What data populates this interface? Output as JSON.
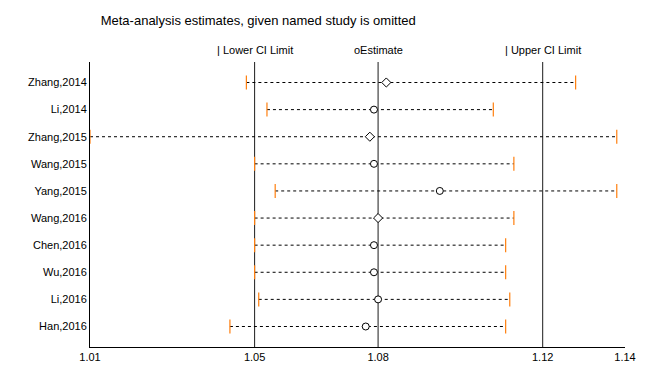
{
  "chart_data": {
    "type": "forest",
    "title": "Meta-analysis estimates, given named study is omitted",
    "subtitle": [
      "| Lower CI Limit",
      "oEstimate",
      "| Upper CI Limit"
    ],
    "categories": [
      "Zhang,2014",
      "Li,2014",
      "Zhang,2015",
      "Wang,2015",
      "Yang,2015",
      "Wang,2016",
      "Chen,2016",
      "Wu,2016",
      "Li,2016",
      "Han,2016"
    ],
    "series": [
      {
        "marker": "diamond",
        "values": [
          1.082,
          null,
          1.078,
          null,
          null,
          1.08,
          null,
          null,
          null,
          null
        ]
      },
      {
        "marker": "circle",
        "values": [
          null,
          1.079,
          null,
          1.079,
          1.095,
          null,
          1.079,
          1.079,
          1.08,
          1.077
        ]
      }
    ],
    "lower": [
      1.048,
      1.053,
      1.01,
      1.05,
      1.055,
      1.05,
      1.05,
      1.05,
      1.051,
      1.044
    ],
    "upper": [
      1.128,
      1.108,
      1.138,
      1.113,
      1.138,
      1.113,
      1.111,
      1.111,
      1.112,
      1.111
    ],
    "reference_lines": [
      1.05,
      1.08,
      1.12
    ],
    "xlim": [
      1.01,
      1.14
    ],
    "xticks": [
      1.01,
      1.05,
      1.08,
      1.12,
      1.14
    ],
    "color": "#000000",
    "line_style": "dotted",
    "grid": false
  }
}
